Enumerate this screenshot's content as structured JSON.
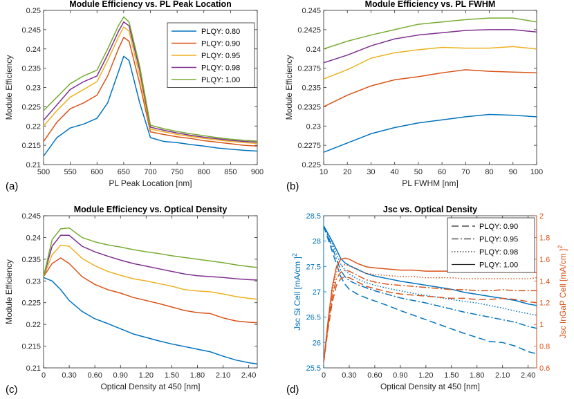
{
  "colors": {
    "PLQY: 0.80": "#0072BD",
    "PLQY: 0.90": "#D95319",
    "PLQY: 0.95": "#EDB120",
    "PLQY: 0.98": "#7E2F8E",
    "PLQY: 1.00": "#77AC30",
    "si": "#0072BD",
    "ingap": "#D95319"
  },
  "chart_data": [
    {
      "id": "a",
      "panel_label": "(a)",
      "type": "line",
      "title": "Module Efficiency vs. PL Peak Location",
      "xlabel": "PL Peak Location [nm]",
      "ylabel": "Module Efficiency",
      "xlim": [
        500,
        900
      ],
      "ylim": [
        0.21,
        0.25
      ],
      "xticks": [
        500,
        550,
        600,
        650,
        700,
        750,
        800,
        850,
        900
      ],
      "xticklabels": [
        "500",
        "550",
        "600",
        "650",
        "700",
        "750",
        "800",
        "850",
        "900"
      ],
      "yticks": [
        0.21,
        0.215,
        0.22,
        0.225,
        0.23,
        0.235,
        0.24,
        0.245,
        0.25
      ],
      "yticklabels": [
        "0.21",
        "0.215",
        "0.22",
        "0.225",
        "0.23",
        "0.235",
        "0.24",
        "0.245",
        "0.25"
      ],
      "legend": "top-right",
      "x": [
        500,
        525,
        550,
        575,
        600,
        620,
        640,
        650,
        660,
        680,
        700,
        725,
        750,
        775,
        800,
        825,
        850,
        875,
        900
      ],
      "series": [
        {
          "name": "PLQY: 0.80",
          "values": [
            0.2122,
            0.217,
            0.2195,
            0.2205,
            0.222,
            0.226,
            0.234,
            0.2381,
            0.237,
            0.226,
            0.217,
            0.216,
            0.2157,
            0.2152,
            0.2148,
            0.2143,
            0.214,
            0.2137,
            0.2135
          ]
        },
        {
          "name": "PLQY: 0.90",
          "values": [
            0.216,
            0.221,
            0.2245,
            0.226,
            0.228,
            0.233,
            0.24,
            0.243,
            0.242,
            0.231,
            0.2185,
            0.2178,
            0.2172,
            0.2168,
            0.2162,
            0.2158,
            0.2154,
            0.215,
            0.2148
          ]
        },
        {
          "name": "PLQY: 0.95",
          "values": [
            0.22,
            0.224,
            0.2275,
            0.2295,
            0.2315,
            0.237,
            0.243,
            0.2457,
            0.2446,
            0.233,
            0.2192,
            0.2185,
            0.2178,
            0.2173,
            0.2168,
            0.2164,
            0.216,
            0.2157,
            0.2155
          ]
        },
        {
          "name": "PLQY: 0.98",
          "values": [
            0.2215,
            0.2255,
            0.2295,
            0.2315,
            0.233,
            0.2385,
            0.2445,
            0.247,
            0.246,
            0.2345,
            0.2197,
            0.2189,
            0.2182,
            0.2176,
            0.2171,
            0.2167,
            0.2163,
            0.216,
            0.2158
          ]
        },
        {
          "name": "PLQY: 1.00",
          "values": [
            0.224,
            0.2275,
            0.231,
            0.233,
            0.2345,
            0.24,
            0.246,
            0.2483,
            0.247,
            0.2355,
            0.2202,
            0.2193,
            0.2186,
            0.218,
            0.2175,
            0.217,
            0.2166,
            0.2163,
            0.2161
          ]
        }
      ]
    },
    {
      "id": "b",
      "panel_label": "(b)",
      "type": "line",
      "title": "Module Efficiency vs. PL FWHM",
      "xlabel": "PL FWHM [nm]",
      "ylabel": "Module Efficiency",
      "xlim": [
        10,
        100
      ],
      "ylim": [
        0.225,
        0.245
      ],
      "xticks": [
        10,
        20,
        30,
        40,
        50,
        60,
        70,
        80,
        90,
        100
      ],
      "xticklabels": [
        "10",
        "20",
        "30",
        "40",
        "50",
        "60",
        "70",
        "80",
        "90",
        "100"
      ],
      "yticks": [
        0.225,
        0.2275,
        0.23,
        0.2325,
        0.235,
        0.2375,
        0.24,
        0.2425,
        0.245
      ],
      "yticklabels": [
        "0.225",
        "0.2275",
        "0.23",
        "0.2325",
        "0.235",
        "0.2375",
        "0.24",
        "0.2425",
        "0.245"
      ],
      "x": [
        10,
        20,
        30,
        40,
        50,
        60,
        70,
        80,
        90,
        100
      ],
      "series": [
        {
          "name": "PLQY: 0.80",
          "values": [
            0.2266,
            0.2278,
            0.229,
            0.2298,
            0.2304,
            0.2308,
            0.2312,
            0.2315,
            0.2314,
            0.2312
          ]
        },
        {
          "name": "PLQY: 0.90",
          "values": [
            0.2325,
            0.234,
            0.2352,
            0.236,
            0.2364,
            0.2369,
            0.2373,
            0.2371,
            0.237,
            0.2369
          ]
        },
        {
          "name": "PLQY: 0.95",
          "values": [
            0.2361,
            0.2373,
            0.2388,
            0.2395,
            0.2399,
            0.2402,
            0.2401,
            0.2401,
            0.2403,
            0.24
          ]
        },
        {
          "name": "PLQY: 0.98",
          "values": [
            0.2382,
            0.2392,
            0.2404,
            0.2413,
            0.2418,
            0.2421,
            0.2424,
            0.2425,
            0.2425,
            0.2422
          ]
        },
        {
          "name": "PLQY: 1.00",
          "values": [
            0.24,
            0.241,
            0.2418,
            0.2425,
            0.2432,
            0.2435,
            0.2438,
            0.244,
            0.244,
            0.2435
          ]
        }
      ]
    },
    {
      "id": "c",
      "panel_label": "(c)",
      "type": "line",
      "title": "Module Efficiency vs. Optical Density",
      "xlabel": "Optical Density at 450 [nm]",
      "ylabel": "Module Efficiency",
      "xlim": [
        0,
        2.5
      ],
      "ylim": [
        0.21,
        0.245
      ],
      "xticks": [
        0,
        0.3,
        0.6,
        0.9,
        1.2,
        1.5,
        1.8,
        2.1,
        2.4
      ],
      "xticklabels": [
        "0",
        "0.30",
        "0.60",
        "0.90",
        "1.20",
        "1.50",
        "1.80",
        "2.10",
        "2.40"
      ],
      "yticks": [
        0.21,
        0.215,
        0.22,
        0.225,
        0.23,
        0.235,
        0.24,
        0.245
      ],
      "yticklabels": [
        "0.21",
        "0.215",
        "0.22",
        "0.225",
        "0.23",
        "0.235",
        "0.24",
        "0.245"
      ],
      "x": [
        0,
        0.1,
        0.2,
        0.3,
        0.45,
        0.6,
        0.75,
        0.9,
        1.05,
        1.2,
        1.35,
        1.5,
        1.65,
        1.8,
        1.95,
        2.1,
        2.25,
        2.4,
        2.5
      ],
      "series": [
        {
          "name": "PLQY: 0.80",
          "values": [
            0.2308,
            0.23,
            0.228,
            0.2255,
            0.223,
            0.2213,
            0.2202,
            0.219,
            0.2178,
            0.217,
            0.2162,
            0.2155,
            0.2149,
            0.2143,
            0.2137,
            0.2127,
            0.2118,
            0.2112,
            0.2109
          ]
        },
        {
          "name": "PLQY: 0.90",
          "values": [
            0.231,
            0.234,
            0.2353,
            0.234,
            0.231,
            0.2292,
            0.228,
            0.2272,
            0.2262,
            0.2255,
            0.2248,
            0.224,
            0.2232,
            0.2227,
            0.2225,
            0.2215,
            0.2208,
            0.2205,
            0.2204
          ]
        },
        {
          "name": "PLQY: 0.95",
          "values": [
            0.231,
            0.236,
            0.2382,
            0.238,
            0.2352,
            0.2335,
            0.2322,
            0.2313,
            0.2305,
            0.23,
            0.2294,
            0.2288,
            0.228,
            0.2277,
            0.2275,
            0.227,
            0.2264,
            0.226,
            0.2258
          ]
        },
        {
          "name": "PLQY: 0.98",
          "values": [
            0.231,
            0.238,
            0.2405,
            0.2405,
            0.238,
            0.2367,
            0.2357,
            0.2348,
            0.234,
            0.2334,
            0.2328,
            0.2322,
            0.2316,
            0.2312,
            0.231,
            0.2308,
            0.2305,
            0.2303,
            0.2302
          ]
        },
        {
          "name": "PLQY: 1.00",
          "values": [
            0.231,
            0.2395,
            0.242,
            0.2422,
            0.24,
            0.239,
            0.2383,
            0.2378,
            0.2372,
            0.2367,
            0.2363,
            0.2358,
            0.2354,
            0.235,
            0.2346,
            0.2342,
            0.2337,
            0.2333,
            0.2331
          ]
        }
      ]
    },
    {
      "id": "d",
      "panel_label": "(d)",
      "type": "line",
      "title": "Jsc vs. Optical Density",
      "xlabel": "Optical Density at 450 [nm]",
      "ylabel": "Jsc Si Cell [mA/cm ]",
      "ylabel_sup": "2",
      "y2label": "Jsc InGaP Cell [mA/cm ]",
      "y2label_sup": "2",
      "xlim": [
        0,
        2.5
      ],
      "ylim": [
        25.5,
        28.5
      ],
      "y2lim": [
        0.6,
        2
      ],
      "xticks": [
        0,
        0.3,
        0.6,
        0.9,
        1.2,
        1.5,
        1.8,
        2.1,
        2.4
      ],
      "xticklabels": [
        "0",
        "0.30",
        "0.60",
        "0.90",
        "1.20",
        "1.50",
        "1.80",
        "2.10",
        "2.40"
      ],
      "yticks": [
        25.5,
        26,
        26.5,
        27,
        27.5,
        28,
        28.5
      ],
      "yticklabels": [
        "25.5",
        "26",
        "26.5",
        "27",
        "27.5",
        "28",
        "28.5"
      ],
      "y2ticks": [
        0.6,
        0.8,
        1,
        1.2,
        1.4,
        1.6,
        1.8,
        2
      ],
      "y2ticklabels": [
        "0.6",
        "0.8",
        "1",
        "1.2",
        "1.4",
        "1.6",
        "1.8",
        "2"
      ],
      "legend": "top-right",
      "legend_entries": [
        {
          "name": "PLQY: 0.90",
          "dash": "dash"
        },
        {
          "name": "PLQY: 0.95",
          "dash": "dashdot"
        },
        {
          "name": "PLQY: 0.98",
          "dash": "dot"
        },
        {
          "name": "PLQY: 1.00",
          "dash": "solid"
        }
      ],
      "x": [
        0,
        0.05,
        0.1,
        0.15,
        0.2,
        0.25,
        0.3,
        0.4,
        0.5,
        0.6,
        0.75,
        0.9,
        1.05,
        1.2,
        1.35,
        1.5,
        1.65,
        1.8,
        1.95,
        2.1,
        2.25,
        2.4,
        2.5
      ],
      "si_series": [
        {
          "name": "PLQY: 0.90",
          "dash": "dash",
          "values": [
            28.3,
            28.05,
            27.8,
            27.55,
            27.3,
            27.15,
            27.05,
            26.95,
            26.88,
            26.82,
            26.73,
            26.63,
            26.54,
            26.45,
            26.36,
            26.27,
            26.18,
            26.1,
            26.02,
            26.0,
            25.93,
            25.82,
            25.78
          ]
        },
        {
          "name": "PLQY: 0.95",
          "dash": "dashdot",
          "values": [
            28.3,
            28.1,
            27.88,
            27.65,
            27.42,
            27.3,
            27.22,
            27.14,
            27.08,
            27.02,
            26.95,
            26.88,
            26.83,
            26.78,
            26.72,
            26.66,
            26.6,
            26.55,
            26.5,
            26.45,
            26.4,
            26.32,
            26.28
          ]
        },
        {
          "name": "PLQY: 0.98",
          "dash": "dot",
          "values": [
            28.3,
            28.13,
            27.95,
            27.75,
            27.55,
            27.43,
            27.35,
            27.25,
            27.18,
            27.13,
            27.07,
            27.02,
            26.97,
            26.93,
            26.89,
            26.85,
            26.81,
            26.78,
            26.73,
            26.68,
            26.62,
            26.57,
            26.54
          ]
        },
        {
          "name": "PLQY: 1.00",
          "dash": "solid",
          "values": [
            28.3,
            28.15,
            28.0,
            27.83,
            27.66,
            27.57,
            27.52,
            27.44,
            27.36,
            27.31,
            27.26,
            27.21,
            27.17,
            27.13,
            27.09,
            27.05,
            26.99,
            26.95,
            26.91,
            26.87,
            26.83,
            26.76,
            26.73
          ]
        }
      ],
      "ingap_series": [
        {
          "name": "PLQY: 0.90",
          "dash": "dash",
          "values": [
            0.65,
            0.95,
            1.2,
            1.36,
            1.42,
            1.44,
            1.43,
            1.39,
            1.35,
            1.33,
            1.3,
            1.28,
            1.27,
            1.26,
            1.25,
            1.24,
            1.24,
            1.23,
            1.23,
            1.24,
            1.23,
            1.21,
            1.2
          ]
        },
        {
          "name": "PLQY: 0.95",
          "dash": "dashdot",
          "values": [
            0.65,
            0.98,
            1.25,
            1.42,
            1.48,
            1.5,
            1.49,
            1.45,
            1.41,
            1.39,
            1.37,
            1.36,
            1.35,
            1.34,
            1.33,
            1.32,
            1.32,
            1.31,
            1.31,
            1.32,
            1.31,
            1.31,
            1.31
          ]
        },
        {
          "name": "PLQY: 0.98",
          "dash": "dot",
          "values": [
            0.65,
            1.0,
            1.3,
            1.48,
            1.54,
            1.55,
            1.54,
            1.5,
            1.47,
            1.46,
            1.45,
            1.44,
            1.44,
            1.43,
            1.43,
            1.43,
            1.42,
            1.42,
            1.42,
            1.42,
            1.42,
            1.42,
            1.43
          ]
        },
        {
          "name": "PLQY: 1.00",
          "dash": "solid",
          "values": [
            0.65,
            1.02,
            1.34,
            1.53,
            1.6,
            1.61,
            1.6,
            1.56,
            1.53,
            1.52,
            1.51,
            1.5,
            1.5,
            1.49,
            1.49,
            1.49,
            1.48,
            1.48,
            1.48,
            1.48,
            1.48,
            1.48,
            1.48
          ]
        }
      ]
    }
  ]
}
